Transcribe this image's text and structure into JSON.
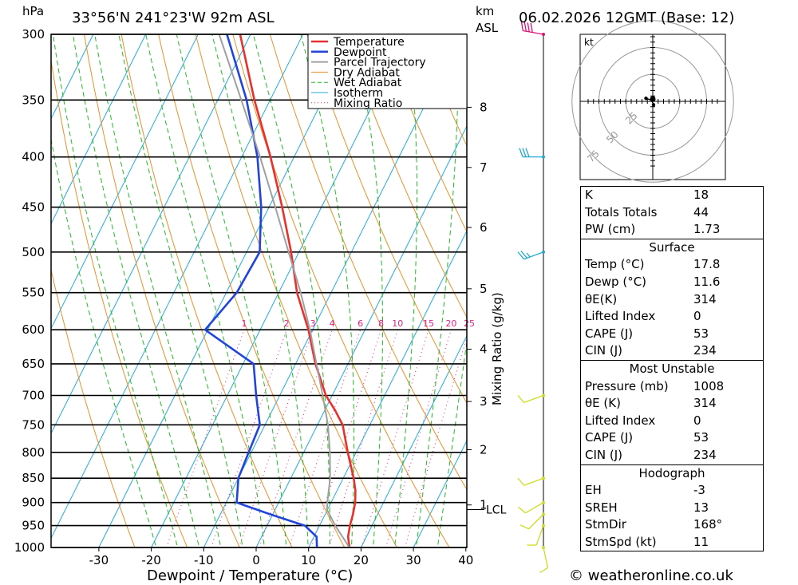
{
  "header": {
    "location": "33°56'N 241°23'W 92m ASL",
    "datetime": "06.02.2026 12GMT (Base: 12)",
    "hpa_label": "hPa",
    "km_label": "km",
    "asl_label": "ASL"
  },
  "chart_data": {
    "type": "line",
    "title": "Skew-T log-P sounding",
    "xlabel": "Dewpoint / Temperature (°C)",
    "ylabel": "hPa",
    "y2label": "Mixing Ratio (g/kg)",
    "xlim": [
      -40,
      40
    ],
    "ylim": [
      1000,
      300
    ],
    "x_ticks": [
      -30,
      -20,
      -10,
      0,
      10,
      20,
      30,
      40
    ],
    "pressure_levels": [
      300,
      350,
      400,
      450,
      500,
      550,
      600,
      650,
      700,
      750,
      800,
      850,
      900,
      950,
      1000
    ],
    "km_ticks": [
      {
        "label": "8",
        "p": 356
      },
      {
        "label": "7",
        "p": 410
      },
      {
        "label": "6",
        "p": 472
      },
      {
        "label": "5",
        "p": 545
      },
      {
        "label": "4",
        "p": 628
      },
      {
        "label": "3",
        "p": 710
      },
      {
        "label": "2",
        "p": 795
      },
      {
        "label": "1",
        "p": 905
      }
    ],
    "lcl": {
      "label": "LCL",
      "p": 915
    },
    "mixing_ratio_labels": [
      "1",
      "2",
      "3",
      "4",
      "6",
      "8",
      "10",
      "15",
      "20",
      "25"
    ],
    "mixing_ratio_values": [
      1,
      2,
      3,
      4,
      6,
      8,
      10,
      15,
      20,
      25
    ],
    "legend": [
      "Temperature",
      "Dewpoint",
      "Parcel Trajectory",
      "Dry Adiabat",
      "Wet Adiabat",
      "Isotherm",
      "Mixing Ratio"
    ],
    "legend_position": "top-right",
    "series": [
      {
        "name": "Temperature",
        "color": "#e8302c",
        "points": [
          [
            1000,
            17.8
          ],
          [
            975,
            16.5
          ],
          [
            950,
            15.8
          ],
          [
            925,
            15.3
          ],
          [
            900,
            14.6
          ],
          [
            875,
            13.5
          ],
          [
            850,
            12.0
          ],
          [
            800,
            8.4
          ],
          [
            750,
            4.8
          ],
          [
            725,
            2.0
          ],
          [
            700,
            -1.2
          ],
          [
            650,
            -6.2
          ],
          [
            600,
            -10.8
          ],
          [
            550,
            -16.5
          ],
          [
            500,
            -21.5
          ],
          [
            450,
            -27.5
          ],
          [
            400,
            -34.5
          ],
          [
            350,
            -43.0
          ],
          [
            300,
            -52.0
          ]
        ]
      },
      {
        "name": "Dewpoint",
        "color": "#2244dd",
        "points": [
          [
            1000,
            11.6
          ],
          [
            975,
            10.5
          ],
          [
            950,
            7.2
          ],
          [
            925,
            -0.5
          ],
          [
            900,
            -8.0
          ],
          [
            850,
            -10.0
          ],
          [
            800,
            -10.5
          ],
          [
            750,
            -11.0
          ],
          [
            700,
            -14.5
          ],
          [
            650,
            -18.0
          ],
          [
            600,
            -30.5
          ],
          [
            550,
            -28.0
          ],
          [
            500,
            -27.5
          ],
          [
            450,
            -31.5
          ],
          [
            400,
            -37.0
          ],
          [
            350,
            -44.5
          ],
          [
            300,
            -54.5
          ]
        ]
      },
      {
        "name": "Parcel Trajectory",
        "color": "#a0a0a0",
        "points": [
          [
            1000,
            17.8
          ],
          [
            950,
            13.0
          ],
          [
            915,
            9.9
          ],
          [
            900,
            9.3
          ],
          [
            850,
            7.5
          ],
          [
            800,
            5.0
          ],
          [
            750,
            2.0
          ],
          [
            700,
            -1.8
          ],
          [
            650,
            -6.0
          ],
          [
            600,
            -10.5
          ],
          [
            550,
            -15.8
          ],
          [
            500,
            -22.0
          ],
          [
            450,
            -28.8
          ],
          [
            400,
            -36.5
          ],
          [
            350,
            -45.5
          ],
          [
            300,
            -56.0
          ]
        ]
      }
    ]
  },
  "wind_barbs": [
    {
      "p": 1000,
      "dir": 168,
      "kt": 11
    },
    {
      "p": 950,
      "dir": 200,
      "kt": 10
    },
    {
      "p": 925,
      "dir": 225,
      "kt": 10
    },
    {
      "p": 900,
      "dir": 240,
      "kt": 10
    },
    {
      "p": 850,
      "dir": 250,
      "kt": 10
    },
    {
      "p": 700,
      "dir": 250,
      "kt": 10
    },
    {
      "p": 500,
      "dir": 250,
      "kt": 25
    },
    {
      "p": 400,
      "dir": 270,
      "kt": 30
    },
    {
      "p": 300,
      "dir": 280,
      "kt": 40
    }
  ],
  "hodograph": {
    "unit_label": "kt",
    "ring_labels": [
      "25",
      "50",
      "75"
    ],
    "trace_kt": [
      [
        2,
        -9
      ],
      [
        1,
        -6
      ],
      [
        -1,
        -2
      ],
      [
        -6,
        4
      ],
      [
        -18,
        8
      ]
    ]
  },
  "stats": {
    "k": {
      "label": "K",
      "value": "18"
    },
    "tt": {
      "label": "Totals Totals",
      "value": "44"
    },
    "pw": {
      "label": "PW (cm)",
      "value": "1.73"
    },
    "surface": {
      "title": "Surface",
      "temp": {
        "label": "Temp (°C)",
        "value": "17.8"
      },
      "dewp": {
        "label": "Dewp (°C)",
        "value": "11.6"
      },
      "theta": {
        "label": "θE(K)",
        "value": "314"
      },
      "li": {
        "label": "Lifted Index",
        "value": "0"
      },
      "cape": {
        "label": "CAPE (J)",
        "value": "53"
      },
      "cin": {
        "label": "CIN (J)",
        "value": "234"
      }
    },
    "mu": {
      "title": "Most Unstable",
      "pressure": {
        "label": "Pressure (mb)",
        "value": "1008"
      },
      "theta": {
        "label": "θE (K)",
        "value": "314"
      },
      "li": {
        "label": "Lifted Index",
        "value": "0"
      },
      "cape": {
        "label": "CAPE (J)",
        "value": "53"
      },
      "cin": {
        "label": "CIN (J)",
        "value": "234"
      }
    },
    "hodo": {
      "title": "Hodograph",
      "eh": {
        "label": "EH",
        "value": "-3"
      },
      "sreh": {
        "label": "SREH",
        "value": "13"
      },
      "stmdir": {
        "label": "StmDir",
        "value": "168°"
      },
      "stmspd": {
        "label": "StmSpd (kt)",
        "value": "11"
      }
    }
  },
  "footer": {
    "copyright": "© weatheronline.co.uk"
  },
  "colors": {
    "temperature": "#e8302c",
    "dewpoint": "#2244dd",
    "parcel": "#a0a0a0",
    "dry_adiabat": "#e8902a",
    "wet_adiabat": "#22bb22",
    "isotherm": "#22aadd",
    "mixing_ratio": "#dd2288"
  }
}
